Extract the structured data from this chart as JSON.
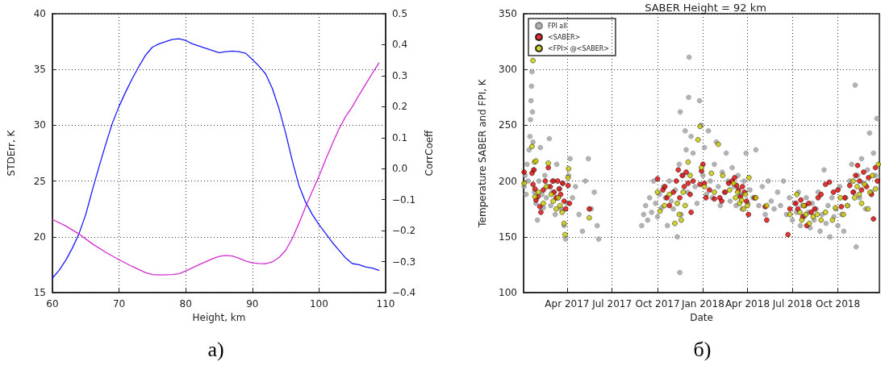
{
  "chart_data": [
    {
      "type": "line",
      "xlabel": "Height, km",
      "ylabel": "STDErr, K",
      "y2label": "CorrCoeff",
      "annotations": [
        "а)"
      ],
      "xlim": [
        60,
        110
      ],
      "xticks": [
        60,
        70,
        80,
        90,
        100,
        110
      ],
      "ylim": [
        15,
        40
      ],
      "yticks": [
        15,
        20,
        25,
        30,
        35,
        40
      ],
      "y2lim": [
        -0.4,
        0.5
      ],
      "y2ticks": [
        {
          "value": -0.4,
          "label": "−0.4"
        },
        {
          "value": -0.3,
          "label": "−0.3"
        },
        {
          "value": -0.2,
          "label": "−0.2"
        },
        {
          "value": -0.1,
          "label": "−0.1"
        },
        {
          "value": 0,
          "label": "0.0"
        },
        {
          "value": 0.1,
          "label": "0.1"
        },
        {
          "value": 0.2,
          "label": "0.2"
        },
        {
          "value": 0.3,
          "label": "0.3"
        },
        {
          "value": 0.4,
          "label": "0.4"
        },
        {
          "value": 0.5,
          "label": "0.5"
        }
      ],
      "grid": true,
      "marker": "none",
      "line_style": "solid",
      "series": [
        {
          "color": "#1a1aff",
          "x": [
            60,
            61,
            62,
            63,
            64,
            65,
            66,
            67,
            68,
            69,
            70,
            71,
            72,
            73,
            74,
            75,
            76,
            77,
            78,
            79,
            80,
            81,
            82,
            83,
            84,
            85,
            86,
            87,
            88,
            89,
            90,
            91,
            92,
            93,
            94,
            95,
            96,
            97,
            98,
            99,
            100,
            101,
            102,
            103,
            104,
            105,
            106,
            107,
            108,
            109
          ],
          "values": [
            16.3,
            17.0,
            17.9,
            19.0,
            20.3,
            22.0,
            24.2,
            26.3,
            28.3,
            30.2,
            31.7,
            33.0,
            34.2,
            35.3,
            36.3,
            37.0,
            37.3,
            37.5,
            37.7,
            37.75,
            37.6,
            37.3,
            37.1,
            36.9,
            36.7,
            36.5,
            36.6,
            36.65,
            36.6,
            36.45,
            35.9,
            35.3,
            34.6,
            33.3,
            31.5,
            29.3,
            26.8,
            24.6,
            23.1,
            22.0,
            21.1,
            20.3,
            19.5,
            18.8,
            18.1,
            17.6,
            17.5,
            17.3,
            17.2,
            17.0
          ]
        },
        {
          "color": "#d42bd4",
          "axis": "y2",
          "x": [
            60,
            62,
            64,
            66,
            68,
            70,
            72,
            74,
            75,
            76,
            78,
            79,
            80,
            82,
            84,
            85,
            86,
            87,
            88,
            89,
            90,
            91,
            92,
            93,
            94,
            95,
            96,
            97,
            98,
            99,
            100,
            101,
            102,
            103,
            104,
            105,
            106,
            107,
            108,
            109
          ],
          "values": [
            -0.164,
            -0.185,
            -0.211,
            -0.243,
            -0.27,
            -0.294,
            -0.316,
            -0.336,
            -0.342,
            -0.343,
            -0.342,
            -0.339,
            -0.33,
            -0.31,
            -0.291,
            -0.283,
            -0.28,
            -0.282,
            -0.289,
            -0.298,
            -0.304,
            -0.306,
            -0.307,
            -0.301,
            -0.287,
            -0.264,
            -0.225,
            -0.176,
            -0.123,
            -0.073,
            -0.025,
            0.029,
            0.08,
            0.128,
            0.168,
            0.2,
            0.237,
            0.272,
            0.307,
            0.341
          ]
        }
      ]
    },
    {
      "type": "scatter",
      "title": "SABER Height = 92 km",
      "xlabel": "Date",
      "ylabel": "Temperature SABER and FPI, K",
      "annotations": [
        "б)"
      ],
      "xlim": [
        "2017-01-03",
        "2018-12-24"
      ],
      "xticks": [
        {
          "value": "2017-04-01",
          "label": "Apr 2017"
        },
        {
          "value": "2017-07-01",
          "label": "Jul 2017"
        },
        {
          "value": "2017-10-01",
          "label": "Oct 2017"
        },
        {
          "value": "2018-01-01",
          "label": "Jan 2018"
        },
        {
          "value": "2018-04-01",
          "label": "Apr 2018"
        },
        {
          "value": "2018-07-01",
          "label": "Jul 2018"
        },
        {
          "value": "2018-10-01",
          "label": "Oct 2018"
        }
      ],
      "ylim": [
        100,
        350
      ],
      "yticks": [
        100,
        150,
        200,
        250,
        300,
        350
      ],
      "grid": true,
      "legend": "top left",
      "marker": "circle",
      "series": [
        {
          "name": "FPI all",
          "color": "#a0a0a0",
          "x": [
            "2017-01-04",
            "2017-01-06",
            "2017-01-08",
            "2017-01-10",
            "2017-01-12",
            "2017-01-14",
            "2017-01-16",
            "2017-01-17",
            "2017-01-18",
            "2017-01-19",
            "2017-01-20",
            "2017-01-21",
            "2017-01-22",
            "2017-01-23",
            "2017-01-25",
            "2017-01-28",
            "2017-01-31",
            "2017-02-03",
            "2017-02-06",
            "2017-02-09",
            "2017-02-12",
            "2017-02-15",
            "2017-02-18",
            "2017-02-21",
            "2017-02-24",
            "2017-02-27",
            "2017-03-02",
            "2017-03-05",
            "2017-03-08",
            "2017-03-11",
            "2017-03-14",
            "2017-03-17",
            "2017-03-20",
            "2017-03-23",
            "2017-03-26",
            "2017-03-29",
            "2017-04-01",
            "2017-04-04",
            "2017-04-07",
            "2017-04-12",
            "2017-04-18",
            "2017-04-25",
            "2017-05-02",
            "2017-05-08",
            "2017-05-14",
            "2017-05-20",
            "2017-05-26",
            "2017-06-01",
            "2017-06-04",
            "2017-08-30",
            "2017-09-03",
            "2017-09-07",
            "2017-09-11",
            "2017-09-15",
            "2017-09-19",
            "2017-09-23",
            "2017-09-27",
            "2017-10-01",
            "2017-10-05",
            "2017-10-09",
            "2017-10-13",
            "2017-10-17",
            "2017-10-21",
            "2017-10-25",
            "2017-10-29",
            "2017-11-02",
            "2017-11-06",
            "2017-11-10",
            "2017-11-14",
            "2017-11-15",
            "2017-11-16",
            "2017-11-18",
            "2017-11-22",
            "2017-11-26",
            "2017-11-28",
            "2017-12-01",
            "2017-12-03",
            "2017-12-04",
            "2017-12-08",
            "2017-12-12",
            "2017-12-16",
            "2017-12-20",
            "2017-12-25",
            "2017-12-28",
            "2018-01-01",
            "2018-01-04",
            "2018-01-08",
            "2018-01-12",
            "2018-01-16",
            "2018-01-20",
            "2018-01-24",
            "2018-01-28",
            "2018-02-01",
            "2018-02-05",
            "2018-02-09",
            "2018-02-13",
            "2018-02-17",
            "2018-02-21",
            "2018-02-25",
            "2018-03-01",
            "2018-03-05",
            "2018-03-09",
            "2018-03-13",
            "2018-03-17",
            "2018-03-21",
            "2018-03-25",
            "2018-03-29",
            "2018-04-02",
            "2018-04-06",
            "2018-04-12",
            "2018-04-18",
            "2018-04-24",
            "2018-05-01",
            "2018-05-07",
            "2018-05-13",
            "2018-05-19",
            "2018-05-25",
            "2018-06-01",
            "2018-06-07",
            "2018-06-13",
            "2018-06-19",
            "2018-06-25",
            "2018-07-01",
            "2018-07-05",
            "2018-07-09",
            "2018-07-13",
            "2018-07-17",
            "2018-07-21",
            "2018-07-25",
            "2018-07-29",
            "2018-08-02",
            "2018-08-06",
            "2018-08-10",
            "2018-08-14",
            "2018-08-18",
            "2018-08-22",
            "2018-08-26",
            "2018-08-30",
            "2018-09-03",
            "2018-09-07",
            "2018-09-11",
            "2018-09-15",
            "2018-09-19",
            "2018-09-23",
            "2018-09-27",
            "2018-10-01",
            "2018-10-05",
            "2018-10-09",
            "2018-10-13",
            "2018-10-17",
            "2018-10-21",
            "2018-10-25",
            "2018-10-29",
            "2018-11-02",
            "2018-11-05",
            "2018-11-07",
            "2018-11-10",
            "2018-11-14",
            "2018-11-18",
            "2018-11-22",
            "2018-11-26",
            "2018-11-30",
            "2018-12-04",
            "2018-12-08",
            "2018-12-12",
            "2018-12-16",
            "2018-12-19"
          ],
          "values": [
            195,
            205,
            188,
            215,
            200,
            228,
            240,
            255,
            272,
            285,
            298,
            262,
            235,
            210,
            190,
            180,
            165,
            200,
            230,
            188,
            176,
            205,
            185,
            195,
            238,
            178,
            190,
            200,
            170,
            215,
            185,
            193,
            175,
            198,
            160,
            148,
            180,
            205,
            220,
            185,
            195,
            170,
            155,
            200,
            220,
            175,
            190,
            160,
            148,
            160,
            170,
            178,
            165,
            185,
            172,
            200,
            180,
            168,
            188,
            176,
            195,
            185,
            160,
            200,
            182,
            175,
            192,
            150,
            215,
            118,
            262,
            170,
            205,
            245,
            228,
            190,
            275,
            311,
            240,
            225,
            195,
            180,
            272,
            250,
            205,
            230,
            188,
            245,
            200,
            185,
            215,
            235,
            195,
            178,
            208,
            190,
            225,
            200,
            182,
            212,
            195,
            178,
            205,
            188,
            175,
            200,
            225,
            180,
            192,
            185,
            228,
            178,
            195,
            170,
            200,
            182,
            175,
            190,
            178,
            200,
            170,
            185,
            165,
            180,
            172,
            190,
            160,
            178,
            168,
            185,
            172,
            158,
            180,
            165,
            175,
            190,
            155,
            170,
            210,
            162,
            178,
            150,
            185,
            168,
            175,
            160,
            195,
            170,
            155,
            185,
            178,
            200,
            215,
            190,
            286,
            141,
            205,
            185,
            220,
            198,
            175,
            210,
            243,
            190,
            225,
            205,
            256
          ]
        },
        {
          "name": "<SABER>",
          "color": "#e00000",
          "x": [
            "2017-01-04",
            "2017-01-20",
            "2017-01-22",
            "2017-01-24",
            "2017-01-26",
            "2017-01-28",
            "2017-02-01",
            "2017-02-05",
            "2017-02-07",
            "2017-02-12",
            "2017-02-16",
            "2017-02-22",
            "2017-02-26",
            "2017-03-03",
            "2017-03-06",
            "2017-03-10",
            "2017-03-13",
            "2017-03-16",
            "2017-03-19",
            "2017-03-23",
            "2017-03-26",
            "2017-03-29",
            "2017-04-03",
            "2017-04-06",
            "2017-05-16",
            "2017-10-01",
            "2017-10-12",
            "2017-10-16",
            "2017-10-20",
            "2017-10-25",
            "2017-11-02",
            "2017-11-08",
            "2017-11-12",
            "2017-11-15",
            "2017-11-20",
            "2017-11-24",
            "2017-11-28",
            "2017-12-02",
            "2017-12-06",
            "2017-12-08",
            "2017-12-12",
            "2017-12-26",
            "2017-12-29",
            "2018-01-01",
            "2018-01-04",
            "2018-01-07",
            "2018-01-14",
            "2018-01-24",
            "2018-02-04",
            "2018-02-08",
            "2018-02-15",
            "2018-02-22",
            "2018-03-01",
            "2018-03-06",
            "2018-03-10",
            "2018-03-14",
            "2018-03-18",
            "2018-03-22",
            "2018-03-26",
            "2018-03-30",
            "2018-04-03",
            "2018-04-16",
            "2018-05-07",
            "2018-05-10",
            "2018-06-22",
            "2018-06-26",
            "2018-07-08",
            "2018-07-12",
            "2018-07-18",
            "2018-07-22",
            "2018-07-26",
            "2018-07-30",
            "2018-08-03",
            "2018-08-08",
            "2018-08-15",
            "2018-08-22",
            "2018-08-28",
            "2018-09-06",
            "2018-09-14",
            "2018-09-22",
            "2018-10-01",
            "2018-10-08",
            "2018-10-15",
            "2018-10-25",
            "2018-11-01",
            "2018-11-06",
            "2018-11-10",
            "2018-11-14",
            "2018-11-18",
            "2018-11-22",
            "2018-11-28",
            "2018-12-02",
            "2018-12-08",
            "2018-12-12",
            "2018-12-16",
            "2018-12-20"
          ],
          "values": [
            208,
            207,
            197,
            210,
            193,
            183,
            186,
            177,
            172,
            192,
            200,
            212,
            195,
            200,
            190,
            185,
            200,
            193,
            188,
            198,
            182,
            175,
            196,
            180,
            175,
            202,
            192,
            195,
            185,
            178,
            190,
            200,
            210,
            185,
            205,
            195,
            208,
            198,
            188,
            172,
            200,
            197,
            209,
            215,
            198,
            185,
            192,
            184,
            185,
            182,
            190,
            198,
            200,
            203,
            196,
            192,
            186,
            195,
            190,
            182,
            170,
            185,
            177,
            165,
            152,
            175,
            180,
            175,
            183,
            168,
            178,
            160,
            180,
            172,
            175,
            185,
            188,
            197,
            199,
            190,
            192,
            177,
            185,
            196,
            190,
            205,
            214,
            200,
            192,
            208,
            195,
            203,
            188,
            166,
            212,
            200
          ]
        },
        {
          "name": "<FPI> @<SABER>",
          "color": "#c8c800",
          "x": [
            "2017-01-04",
            "2017-01-20",
            "2017-01-22",
            "2017-01-25",
            "2017-01-26",
            "2017-01-28",
            "2017-02-02",
            "2017-02-12",
            "2017-02-18",
            "2017-02-22",
            "2017-02-28",
            "2017-03-04",
            "2017-03-10",
            "2017-03-14",
            "2017-03-18",
            "2017-03-22",
            "2017-03-26",
            "2017-03-28",
            "2017-04-03",
            "2017-04-04",
            "2017-05-16",
            "2017-10-01",
            "2017-10-06",
            "2017-10-15",
            "2017-10-25",
            "2017-11-05",
            "2017-11-10",
            "2017-11-14",
            "2017-11-18",
            "2017-11-22",
            "2017-11-26",
            "2017-12-02",
            "2017-12-06",
            "2017-12-22",
            "2017-12-26",
            "2017-12-29",
            "2018-01-04",
            "2018-01-18",
            "2018-01-24",
            "2018-02-01",
            "2018-02-10",
            "2018-02-24",
            "2018-03-04",
            "2018-03-08",
            "2018-03-12",
            "2018-03-16",
            "2018-03-20",
            "2018-03-24",
            "2018-03-28",
            "2018-04-01",
            "2018-04-04",
            "2018-04-18",
            "2018-05-10",
            "2018-06-26",
            "2018-07-10",
            "2018-07-16",
            "2018-07-20",
            "2018-07-24",
            "2018-07-28",
            "2018-08-04",
            "2018-08-12",
            "2018-08-20",
            "2018-08-28",
            "2018-09-06",
            "2018-09-20",
            "2018-09-26",
            "2018-10-06",
            "2018-10-12",
            "2018-10-20",
            "2018-11-01",
            "2018-11-04",
            "2018-11-09",
            "2018-11-13",
            "2018-11-18",
            "2018-11-24",
            "2018-12-01",
            "2018-12-05",
            "2018-12-10",
            "2018-12-16",
            "2018-12-22"
          ],
          "values": [
            198,
            231,
            308,
            217,
            186,
            218,
            190,
            180,
            195,
            216,
            188,
            182,
            175,
            185,
            178,
            172,
            162,
            152,
            203,
            211,
            167,
            190,
            173,
            178,
            188,
            162,
            180,
            170,
            165,
            190,
            178,
            217,
            205,
            237,
            249,
            212,
            195,
            207,
            190,
            233,
            205,
            192,
            198,
            185,
            190,
            180,
            183,
            175,
            188,
            178,
            203,
            185,
            178,
            170,
            188,
            172,
            165,
            178,
            170,
            162,
            168,
            170,
            165,
            172,
            165,
            176,
            185,
            170,
            178,
            200,
            185,
            195,
            188,
            180,
            197,
            175,
            190,
            205,
            193,
            215
          ]
        }
      ]
    }
  ]
}
